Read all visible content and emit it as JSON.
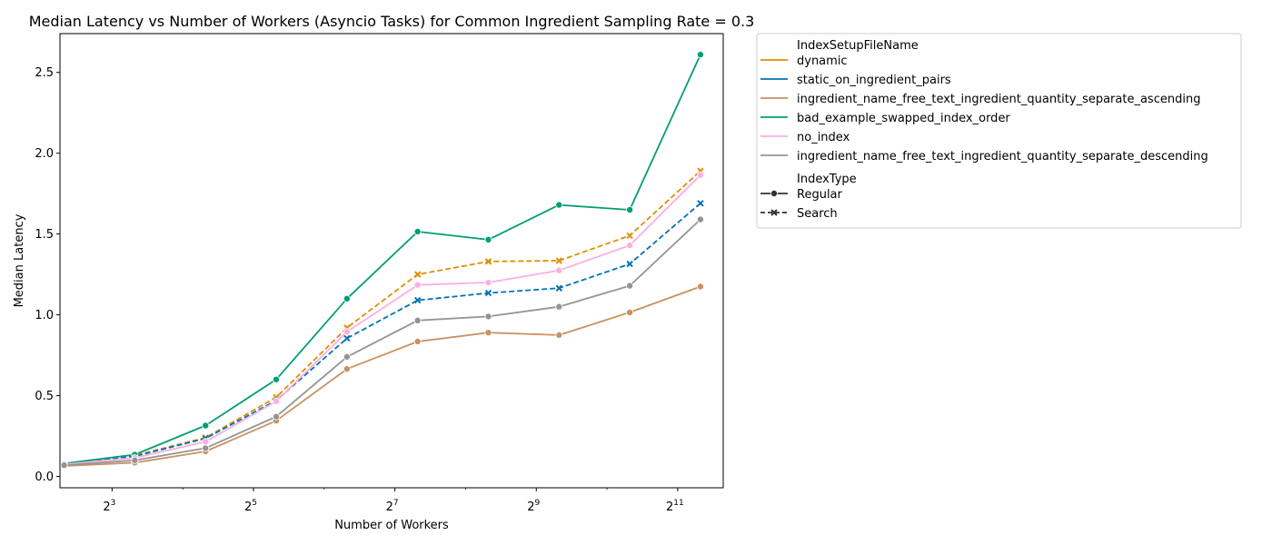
{
  "chart_data": {
    "type": "line",
    "title": "Median Latency vs Number of Workers (Asyncio Tasks) for Common Ingredient Sampling Rate = 0.3",
    "xlabel": "Number of Workers",
    "ylabel": "Median Latency",
    "xscale": "log2",
    "xlim": [
      4.8,
      3200
    ],
    "ylim": [
      -0.07,
      2.74
    ],
    "xticks": [
      {
        "value": 8,
        "base": "2",
        "exp": "3"
      },
      {
        "value": 32,
        "base": "2",
        "exp": "5"
      },
      {
        "value": 128,
        "base": "2",
        "exp": "7"
      },
      {
        "value": 512,
        "base": "2",
        "exp": "9"
      },
      {
        "value": 2048,
        "base": "2",
        "exp": "11"
      }
    ],
    "yticks": [
      "0.0",
      "0.5",
      "1.0",
      "1.5",
      "2.0",
      "2.5"
    ],
    "x": [
      5,
      10,
      20,
      40,
      80,
      160,
      320,
      640,
      1280,
      2560
    ],
    "series": [
      {
        "name": "dynamic",
        "index_type": "Search",
        "color": "#de8f05",
        "values": [
          0.07,
          0.13,
          0.24,
          0.49,
          0.92,
          1.25,
          1.33,
          1.335,
          1.49,
          1.89
        ]
      },
      {
        "name": "static_on_ingredient_pairs",
        "index_type": "Search",
        "color": "#0173b2",
        "values": [
          0.07,
          0.125,
          0.235,
          0.47,
          0.855,
          1.09,
          1.135,
          1.165,
          1.315,
          1.69
        ]
      },
      {
        "name": "ingredient_name_free_text_ingredient_quantity_separate_ascending",
        "index_type": "Regular",
        "color": "#ca9161",
        "values": [
          0.065,
          0.085,
          0.155,
          0.345,
          0.665,
          0.835,
          0.89,
          0.875,
          1.015,
          1.175
        ]
      },
      {
        "name": "bad_example_swapped_index_order",
        "index_type": "Regular",
        "color": "#029e73",
        "values": [
          0.08,
          0.135,
          0.315,
          0.6,
          1.1,
          1.515,
          1.465,
          1.68,
          1.65,
          2.61
        ]
      },
      {
        "name": "no_index",
        "index_type": "Regular",
        "color": "#fbafe4",
        "values": [
          0.075,
          0.115,
          0.215,
          0.465,
          0.895,
          1.185,
          1.2,
          1.275,
          1.43,
          1.865
        ]
      },
      {
        "name": "ingredient_name_free_text_ingredient_quantity_separate_descending",
        "index_type": "Regular",
        "color": "#949494",
        "values": [
          0.07,
          0.1,
          0.175,
          0.37,
          0.74,
          0.965,
          0.99,
          1.05,
          1.18,
          1.59
        ]
      }
    ],
    "legend": {
      "placement": "outside-upper-right",
      "hue_title": "IndexSetupFileName",
      "style_title": "IndexType",
      "style_entries": [
        {
          "label": "Regular",
          "dash": "solid",
          "marker": "circle"
        },
        {
          "label": "Search",
          "dash": "dashed",
          "marker": "x"
        }
      ]
    },
    "grid": false
  }
}
